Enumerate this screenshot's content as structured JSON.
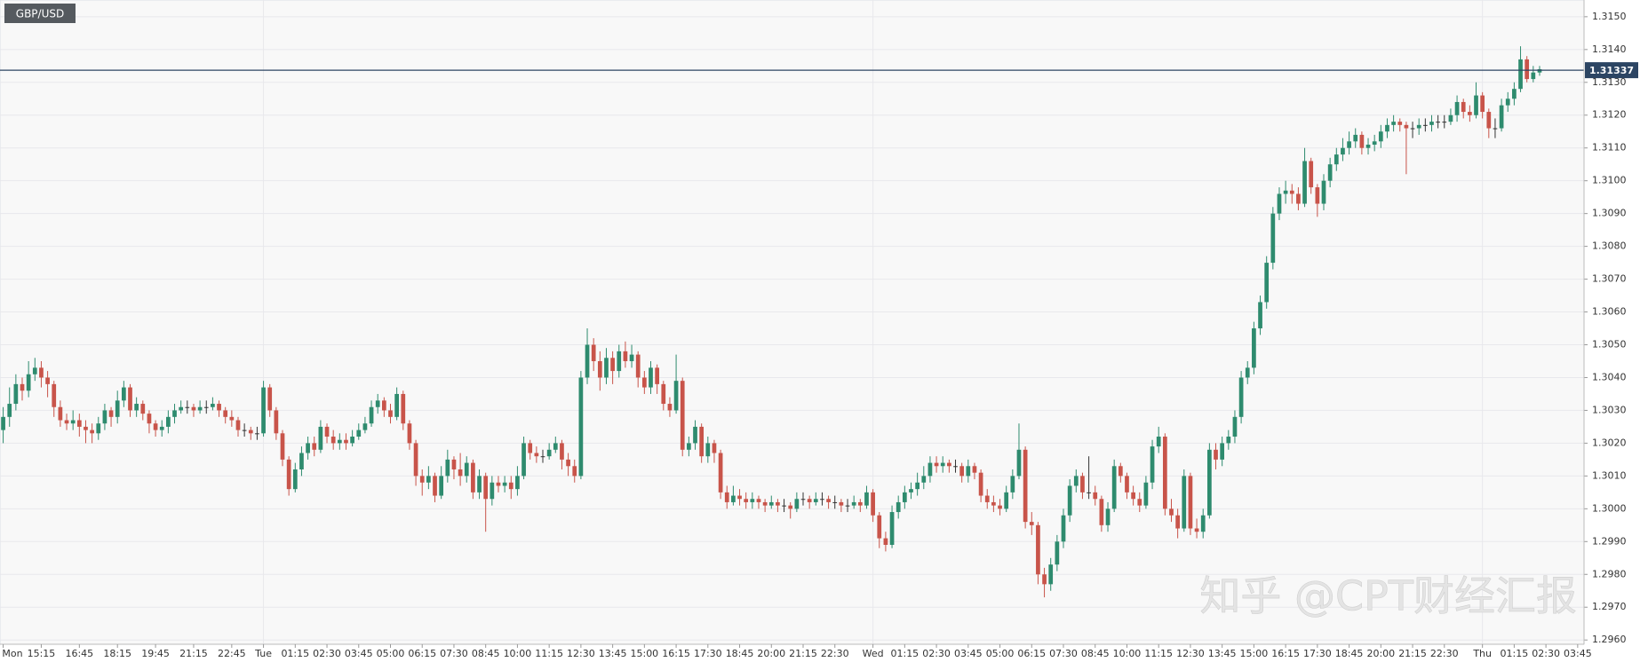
{
  "chart_data": {
    "type": "candlestick",
    "title": "GBP/USD",
    "watermark": "知乎 @CPT财经汇报",
    "last_price": 1.31337,
    "up_color": "#2e8b6e",
    "down_color": "#c8544a",
    "doji_color": "#333333",
    "last_price_color": "#2c4563",
    "grid": true,
    "xlim": [
      -0.5,
      249
    ],
    "ylim": [
      1.29587,
      1.31551
    ],
    "yticks": [
      {
        "value": 1.296,
        "label": "1.2960"
      },
      {
        "value": 1.297,
        "label": "1.2970"
      },
      {
        "value": 1.298,
        "label": "1.2980"
      },
      {
        "value": 1.299,
        "label": "1.2990"
      },
      {
        "value": 1.3,
        "label": "1.3000"
      },
      {
        "value": 1.301,
        "label": "1.3010"
      },
      {
        "value": 1.302,
        "label": "1.3020"
      },
      {
        "value": 1.303,
        "label": "1.3030"
      },
      {
        "value": 1.304,
        "label": "1.3040"
      },
      {
        "value": 1.305,
        "label": "1.3050"
      },
      {
        "value": 1.306,
        "label": "1.3060"
      },
      {
        "value": 1.307,
        "label": "1.3070"
      },
      {
        "value": 1.308,
        "label": "1.3080"
      },
      {
        "value": 1.309,
        "label": "1.3090"
      },
      {
        "value": 1.31,
        "label": "1.3100"
      },
      {
        "value": 1.311,
        "label": "1.3110"
      },
      {
        "value": 1.312,
        "label": "1.3120"
      },
      {
        "value": 1.313,
        "label": "1.3130"
      },
      {
        "value": 1.314,
        "label": "1.3140"
      },
      {
        "value": 1.315,
        "label": "1.3150"
      }
    ],
    "xticks": [
      {
        "value": 0,
        "label": "Mon"
      },
      {
        "value": 6,
        "label": "15:15"
      },
      {
        "value": 12,
        "label": "16:45"
      },
      {
        "value": 18,
        "label": "18:15"
      },
      {
        "value": 24,
        "label": "19:45"
      },
      {
        "value": 30,
        "label": "21:15"
      },
      {
        "value": 36,
        "label": "22:45"
      },
      {
        "value": 41,
        "label": "Tue"
      },
      {
        "value": 46,
        "label": "01:15"
      },
      {
        "value": 51,
        "label": "02:30"
      },
      {
        "value": 56,
        "label": "03:45"
      },
      {
        "value": 61,
        "label": "05:00"
      },
      {
        "value": 66,
        "label": "06:15"
      },
      {
        "value": 71,
        "label": "07:30"
      },
      {
        "value": 76,
        "label": "08:45"
      },
      {
        "value": 81,
        "label": "10:00"
      },
      {
        "value": 86,
        "label": "11:15"
      },
      {
        "value": 91,
        "label": "12:30"
      },
      {
        "value": 96,
        "label": "13:45"
      },
      {
        "value": 101,
        "label": "15:00"
      },
      {
        "value": 106,
        "label": "16:15"
      },
      {
        "value": 111,
        "label": "17:30"
      },
      {
        "value": 116,
        "label": "18:45"
      },
      {
        "value": 121,
        "label": "20:00"
      },
      {
        "value": 126,
        "label": "21:15"
      },
      {
        "value": 131,
        "label": "22:30"
      },
      {
        "value": 137,
        "label": "Wed"
      },
      {
        "value": 142,
        "label": "01:15"
      },
      {
        "value": 147,
        "label": "02:30"
      },
      {
        "value": 152,
        "label": "03:45"
      },
      {
        "value": 157,
        "label": "05:00"
      },
      {
        "value": 162,
        "label": "06:15"
      },
      {
        "value": 167,
        "label": "07:30"
      },
      {
        "value": 172,
        "label": "08:45"
      },
      {
        "value": 177,
        "label": "10:00"
      },
      {
        "value": 182,
        "label": "11:15"
      },
      {
        "value": 187,
        "label": "12:30"
      },
      {
        "value": 192,
        "label": "13:45"
      },
      {
        "value": 197,
        "label": "15:00"
      },
      {
        "value": 202,
        "label": "16:15"
      },
      {
        "value": 207,
        "label": "17:30"
      },
      {
        "value": 212,
        "label": "18:45"
      },
      {
        "value": 217,
        "label": "20:00"
      },
      {
        "value": 222,
        "label": "21:15"
      },
      {
        "value": 227,
        "label": "22:30"
      },
      {
        "value": 233,
        "label": "Thu"
      },
      {
        "value": 238,
        "label": "01:15"
      },
      {
        "value": 243,
        "label": "02:30"
      },
      {
        "value": 248,
        "label": "03:45"
      }
    ],
    "open": [
      1.3024,
      1.3028,
      1.3032,
      1.3038,
      1.3036,
      1.3041,
      1.3043,
      1.304,
      1.3038,
      1.3031,
      1.3027,
      1.3026,
      1.3027,
      1.3025,
      1.3024,
      1.3023,
      1.3026,
      1.303,
      1.3028,
      1.3033,
      1.3037,
      1.303,
      1.3032,
      1.3029,
      1.3026,
      1.3024,
      1.3025,
      1.3028,
      1.303,
      1.3031,
      1.3031,
      1.303,
      1.3031,
      1.3031,
      1.3032,
      1.303,
      1.3028,
      1.3027,
      1.3024,
      1.3024,
      1.3023,
      1.3023,
      1.3037,
      1.303,
      1.3023,
      1.3015,
      1.3006,
      1.3012,
      1.3017,
      1.302,
      1.3018,
      1.3025,
      1.3022,
      1.302,
      1.3021,
      1.302,
      1.3022,
      1.3024,
      1.3026,
      1.3031,
      1.3033,
      1.303,
      1.3028,
      1.3035,
      1.3026,
      1.302,
      1.301,
      1.3008,
      1.301,
      1.3004,
      1.301,
      1.3015,
      1.3012,
      1.301,
      1.3014,
      1.3005,
      1.301,
      1.3003,
      1.3008,
      1.3007,
      1.3008,
      1.3006,
      1.301,
      1.302,
      1.3017,
      1.3016,
      1.3016,
      1.3018,
      1.302,
      1.3015,
      1.3013,
      1.301,
      1.304,
      1.305,
      1.3045,
      1.304,
      1.3046,
      1.3042,
      1.3048,
      1.3045,
      1.3047,
      1.304,
      1.3037,
      1.3043,
      1.3038,
      1.3032,
      1.303,
      1.3039,
      1.3018,
      1.302,
      1.3025,
      1.3016,
      1.302,
      1.3017,
      1.3005,
      1.3002,
      1.3004,
      1.3003,
      1.3002,
      1.3003,
      1.3002,
      1.3001,
      1.3002,
      1.3001,
      1.3001,
      1.3,
      1.3003,
      1.3003,
      1.3002,
      1.3003,
      1.3003,
      1.3002,
      1.3002,
      1.3001,
      1.3001,
      1.3002,
      1.3001,
      1.3005,
      1.2998,
      1.2991,
      1.2989,
      1.2999,
      1.3002,
      1.3005,
      1.3006,
      1.3008,
      1.301,
      1.3014,
      1.3013,
      1.3014,
      1.3013,
      1.3013,
      1.301,
      1.3013,
      1.3011,
      1.3004,
      1.3002,
      1.3001,
      1.3,
      1.3005,
      1.301,
      1.3018,
      1.2996,
      1.2995,
      1.298,
      1.2977,
      1.2983,
      1.299,
      1.2998,
      1.3007,
      1.301,
      1.3005,
      1.3005,
      1.3003,
      1.2995,
      1.3,
      1.3013,
      1.301,
      1.3005,
      1.3003,
      1.3001,
      1.3008,
      1.3019,
      1.3022,
      1.3,
      1.2998,
      1.2994,
      1.301,
      1.2994,
      1.2993,
      1.2998,
      1.3018,
      1.3015,
      1.302,
      1.3022,
      1.3028,
      1.304,
      1.3043,
      1.3055,
      1.3063,
      1.3075,
      1.309,
      1.3096,
      1.3097,
      1.3096,
      1.3093,
      1.3106,
      1.3098,
      1.3093,
      1.31,
      1.3105,
      1.3108,
      1.311,
      1.3112,
      1.3114,
      1.311,
      1.3111,
      1.3112,
      1.3115,
      1.3117,
      1.3118,
      1.3117,
      1.3116,
      1.3116,
      1.3117,
      1.3117,
      1.3118,
      1.3118,
      1.3118,
      1.312,
      1.3124,
      1.3121,
      1.312,
      1.3126,
      1.3121,
      1.3116,
      1.3116,
      1.3123,
      1.3125,
      1.3128,
      1.3137,
      1.3131,
      1.3133
    ],
    "high": [
      1.3031,
      1.3037,
      1.3041,
      1.304,
      1.3045,
      1.3046,
      1.3045,
      1.3042,
      1.3039,
      1.3033,
      1.3029,
      1.303,
      1.3029,
      1.3027,
      1.3026,
      1.3028,
      1.3032,
      1.3031,
      1.3036,
      1.3039,
      1.3038,
      1.3034,
      1.3033,
      1.303,
      1.3027,
      1.3027,
      1.303,
      1.3032,
      1.3033,
      1.3033,
      1.3032,
      1.3033,
      1.3033,
      1.3034,
      1.3033,
      1.3031,
      1.303,
      1.3028,
      1.3026,
      1.3025,
      1.3025,
      1.3039,
      1.3038,
      1.3031,
      1.3024,
      1.3016,
      1.3014,
      1.3019,
      1.3022,
      1.3022,
      1.3027,
      1.3026,
      1.3024,
      1.3023,
      1.3023,
      1.3024,
      1.3026,
      1.3028,
      1.3033,
      1.3035,
      1.3034,
      1.3032,
      1.3037,
      1.3036,
      1.3027,
      1.3021,
      1.3012,
      1.3013,
      1.3011,
      1.3013,
      1.3018,
      1.3016,
      1.3017,
      1.3016,
      1.3015,
      1.3012,
      1.3011,
      1.301,
      1.301,
      1.301,
      1.301,
      1.3013,
      1.3022,
      1.3021,
      1.3019,
      1.3018,
      1.302,
      1.3022,
      1.3021,
      1.3017,
      1.3015,
      1.3042,
      1.3055,
      1.3052,
      1.3048,
      1.3049,
      1.3048,
      1.305,
      1.3051,
      1.305,
      1.3048,
      1.3042,
      1.3045,
      1.3044,
      1.3039,
      1.3034,
      1.3047,
      1.304,
      1.3022,
      1.3027,
      1.3026,
      1.3022,
      1.3021,
      1.3018,
      1.3007,
      1.3007,
      1.3006,
      1.3005,
      1.3005,
      1.3004,
      1.3003,
      1.3004,
      1.3003,
      1.3003,
      1.3002,
      1.3005,
      1.3005,
      1.3004,
      1.3005,
      1.3005,
      1.3004,
      1.3004,
      1.3003,
      1.3003,
      1.3004,
      1.3003,
      1.3007,
      1.3006,
      1.2999,
      1.2993,
      1.3001,
      1.3004,
      1.3007,
      1.3008,
      1.3011,
      1.3013,
      1.3016,
      1.3016,
      1.3016,
      1.3015,
      1.3015,
      1.3014,
      1.3015,
      1.3014,
      1.3012,
      1.3006,
      1.3004,
      1.3003,
      1.3007,
      1.3012,
      1.3026,
      1.3019,
      1.2999,
      1.2996,
      1.2982,
      1.2985,
      1.2992,
      1.3,
      1.3009,
      1.3012,
      1.3011,
      1.3016,
      1.3007,
      1.3004,
      1.3002,
      1.3015,
      1.3014,
      1.3011,
      1.3007,
      1.3005,
      1.301,
      1.3021,
      1.3025,
      1.3023,
      1.3003,
      1.3,
      1.3012,
      1.3011,
      1.2997,
      1.3,
      1.302,
      1.302,
      1.3022,
      1.3024,
      1.303,
      1.3042,
      1.3045,
      1.3057,
      1.3065,
      1.3077,
      1.3092,
      1.3098,
      1.31,
      1.3099,
      1.3098,
      1.311,
      1.3107,
      1.3099,
      1.3102,
      1.3107,
      1.311,
      1.3113,
      1.3115,
      1.3116,
      1.3115,
      1.3113,
      1.3114,
      1.3117,
      1.3119,
      1.312,
      1.3119,
      1.3118,
      1.3118,
      1.3119,
      1.3119,
      1.312,
      1.312,
      1.312,
      1.3122,
      1.3126,
      1.3125,
      1.3123,
      1.313,
      1.3127,
      1.3122,
      1.3119,
      1.3125,
      1.3127,
      1.313,
      1.3141,
      1.3138,
      1.3135,
      1.3135
    ],
    "low": [
      1.302,
      1.3025,
      1.303,
      1.3033,
      1.3034,
      1.3039,
      1.3037,
      1.3034,
      1.3028,
      1.3025,
      1.3024,
      1.3024,
      1.3022,
      1.302,
      1.302,
      1.3021,
      1.3024,
      1.3025,
      1.3026,
      1.3031,
      1.3028,
      1.3028,
      1.3027,
      1.3023,
      1.3022,
      1.3022,
      1.3023,
      1.3026,
      1.3029,
      1.3029,
      1.3028,
      1.3029,
      1.3029,
      1.303,
      1.3028,
      1.3026,
      1.3025,
      1.3022,
      1.3022,
      1.3021,
      1.3021,
      1.3022,
      1.3028,
      1.3021,
      1.3013,
      1.3004,
      1.3005,
      1.301,
      1.3015,
      1.3016,
      1.3017,
      1.302,
      1.3018,
      1.3018,
      1.3018,
      1.3019,
      1.3021,
      1.3023,
      1.3025,
      1.3029,
      1.3028,
      1.3026,
      1.3027,
      1.3024,
      1.3018,
      1.3007,
      1.3004,
      1.3006,
      1.3002,
      1.3003,
      1.3008,
      1.3009,
      1.3007,
      1.3008,
      1.3003,
      1.3003,
      1.2993,
      1.3001,
      1.3005,
      1.3005,
      1.3003,
      1.3004,
      1.3009,
      1.3015,
      1.3014,
      1.3014,
      1.3015,
      1.3017,
      1.3012,
      1.301,
      1.3008,
      1.3009,
      1.3038,
      1.3042,
      1.3036,
      1.3038,
      1.3038,
      1.304,
      1.3043,
      1.3043,
      1.3037,
      1.3035,
      1.3035,
      1.3035,
      1.303,
      1.3028,
      1.3029,
      1.3016,
      1.3016,
      1.3018,
      1.3014,
      1.3014,
      1.3014,
      1.3003,
      1.3,
      1.3001,
      1.3001,
      1.3,
      1.3,
      1.3,
      1.2999,
      1.3,
      1.2999,
      1.2999,
      1.2997,
      1.2999,
      1.3001,
      1.3,
      1.3001,
      1.3001,
      1.3,
      1.3,
      1.2999,
      1.2999,
      1.3,
      1.2999,
      1.3,
      1.2996,
      1.2988,
      1.2987,
      1.2988,
      1.2997,
      1.3,
      1.3003,
      1.3004,
      1.3006,
      1.3008,
      1.3011,
      1.3011,
      1.3011,
      1.3011,
      1.3008,
      1.3008,
      1.3009,
      1.3002,
      1.3,
      1.2999,
      1.2998,
      1.2999,
      1.3003,
      1.3009,
      1.2994,
      1.2992,
      1.2977,
      1.2973,
      1.2975,
      1.2981,
      1.2988,
      1.2996,
      1.3005,
      1.3003,
      1.3003,
      1.3001,
      1.2993,
      1.2993,
      1.2999,
      1.3008,
      1.3003,
      1.3001,
      1.2999,
      1.3,
      1.3006,
      1.3017,
      1.2998,
      1.2996,
      1.2991,
      1.2993,
      1.2992,
      1.2991,
      1.2991,
      1.2997,
      1.3012,
      1.3013,
      1.3018,
      1.302,
      1.3026,
      1.3038,
      1.3041,
      1.3053,
      1.3061,
      1.3073,
      1.3088,
      1.3093,
      1.3093,
      1.3091,
      1.3092,
      1.3096,
      1.3089,
      1.3091,
      1.3098,
      1.3103,
      1.3106,
      1.3108,
      1.311,
      1.3108,
      1.3108,
      1.3109,
      1.311,
      1.3113,
      1.3115,
      1.3115,
      1.3102,
      1.3113,
      1.3114,
      1.3115,
      1.3115,
      1.3116,
      1.3116,
      1.3117,
      1.3118,
      1.3119,
      1.3118,
      1.3119,
      1.3119,
      1.3113,
      1.3113,
      1.3115,
      1.3121,
      1.3123,
      1.3127,
      1.313,
      1.313,
      1.3132
    ],
    "close": [
      1.3028,
      1.3032,
      1.3038,
      1.3036,
      1.3041,
      1.3043,
      1.304,
      1.3038,
      1.3031,
      1.3027,
      1.3026,
      1.3027,
      1.3025,
      1.3024,
      1.3023,
      1.3026,
      1.303,
      1.3028,
      1.3033,
      1.3037,
      1.303,
      1.3032,
      1.3029,
      1.3026,
      1.3024,
      1.3025,
      1.3028,
      1.303,
      1.3031,
      1.3031,
      1.303,
      1.3031,
      1.3031,
      1.3032,
      1.303,
      1.3028,
      1.3027,
      1.3024,
      1.3024,
      1.3023,
      1.3023,
      1.3037,
      1.303,
      1.3023,
      1.3015,
      1.3006,
      1.3012,
      1.3017,
      1.302,
      1.3018,
      1.3025,
      1.3022,
      1.302,
      1.3021,
      1.302,
      1.3022,
      1.3024,
      1.3026,
      1.3031,
      1.3033,
      1.303,
      1.3028,
      1.3035,
      1.3026,
      1.302,
      1.301,
      1.3008,
      1.301,
      1.3004,
      1.301,
      1.3015,
      1.3012,
      1.301,
      1.3014,
      1.3005,
      1.301,
      1.3003,
      1.3008,
      1.3007,
      1.3008,
      1.3006,
      1.301,
      1.302,
      1.3017,
      1.3016,
      1.3016,
      1.3018,
      1.302,
      1.3015,
      1.3013,
      1.301,
      1.304,
      1.305,
      1.3045,
      1.304,
      1.3046,
      1.3042,
      1.3048,
      1.3045,
      1.3047,
      1.304,
      1.3037,
      1.3043,
      1.3038,
      1.3032,
      1.303,
      1.3039,
      1.3018,
      1.302,
      1.3025,
      1.3016,
      1.302,
      1.3017,
      1.3005,
      1.3002,
      1.3004,
      1.3003,
      1.3002,
      1.3003,
      1.3002,
      1.3001,
      1.3002,
      1.3001,
      1.3001,
      1.3,
      1.3003,
      1.3003,
      1.3002,
      1.3003,
      1.3003,
      1.3002,
      1.3002,
      1.3001,
      1.3001,
      1.3002,
      1.3001,
      1.3005,
      1.2998,
      1.2991,
      1.2989,
      1.2999,
      1.3002,
      1.3005,
      1.3006,
      1.3008,
      1.301,
      1.3014,
      1.3013,
      1.3014,
      1.3013,
      1.3013,
      1.301,
      1.3013,
      1.3011,
      1.3004,
      1.3002,
      1.3001,
      1.3,
      1.3005,
      1.301,
      1.3018,
      1.2996,
      1.2995,
      1.298,
      1.2977,
      1.2983,
      1.299,
      1.2998,
      1.3007,
      1.301,
      1.3005,
      1.3005,
      1.3003,
      1.2995,
      1.3,
      1.3013,
      1.301,
      1.3005,
      1.3003,
      1.3001,
      1.3008,
      1.3019,
      1.3022,
      1.3,
      1.2998,
      1.2994,
      1.301,
      1.2994,
      1.2993,
      1.2998,
      1.3018,
      1.3015,
      1.302,
      1.3022,
      1.3028,
      1.304,
      1.3043,
      1.3055,
      1.3063,
      1.3075,
      1.309,
      1.3096,
      1.3097,
      1.3096,
      1.3093,
      1.3106,
      1.3098,
      1.3093,
      1.31,
      1.3105,
      1.3108,
      1.311,
      1.3112,
      1.3114,
      1.311,
      1.3111,
      1.3112,
      1.3115,
      1.3117,
      1.3118,
      1.3117,
      1.3116,
      1.3116,
      1.3117,
      1.3117,
      1.3118,
      1.3118,
      1.3118,
      1.312,
      1.3124,
      1.3121,
      1.312,
      1.3126,
      1.3121,
      1.3116,
      1.3116,
      1.3123,
      1.3125,
      1.3128,
      1.3137,
      1.3131,
      1.3133,
      1.3134
    ]
  }
}
